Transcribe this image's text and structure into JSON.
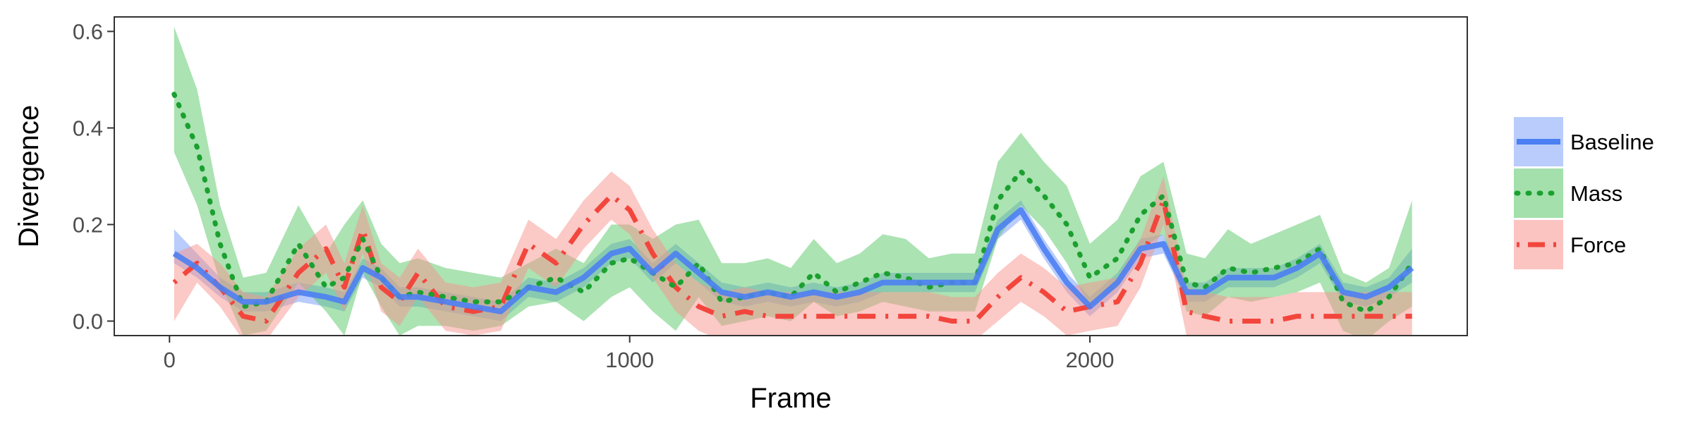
{
  "chart_data": {
    "type": "line",
    "title": "",
    "xlabel": "Frame",
    "ylabel": "Divergence",
    "xlim": [
      -120,
      2820
    ],
    "ylim": [
      -0.03,
      0.63
    ],
    "x_ticks": [
      0,
      1000,
      2000
    ],
    "x_tick_labels": [
      "0",
      "1000",
      "2000"
    ],
    "y_ticks": [
      0.0,
      0.2,
      0.4,
      0.6
    ],
    "y_tick_labels": [
      "0.0",
      "0.2",
      "0.4",
      "0.6"
    ],
    "grid": false,
    "legend_position": "right",
    "x": [
      10,
      60,
      110,
      160,
      210,
      280,
      340,
      380,
      420,
      460,
      500,
      540,
      600,
      660,
      720,
      780,
      840,
      900,
      960,
      1000,
      1050,
      1100,
      1150,
      1200,
      1250,
      1300,
      1350,
      1400,
      1450,
      1500,
      1550,
      1600,
      1650,
      1700,
      1750,
      1800,
      1850,
      1900,
      1950,
      2000,
      2060,
      2110,
      2160,
      2210,
      2250,
      2300,
      2350,
      2400,
      2450,
      2500,
      2550,
      2600,
      2650,
      2700
    ],
    "series": [
      {
        "name": "Baseline",
        "color": "#4C7FF3",
        "band_color": "#7FA3F7",
        "style": "solid",
        "values": [
          0.14,
          0.11,
          0.07,
          0.04,
          0.04,
          0.06,
          0.05,
          0.04,
          0.11,
          0.09,
          0.05,
          0.05,
          0.04,
          0.03,
          0.02,
          0.07,
          0.06,
          0.09,
          0.14,
          0.15,
          0.1,
          0.14,
          0.1,
          0.06,
          0.05,
          0.06,
          0.05,
          0.06,
          0.05,
          0.06,
          0.08,
          0.08,
          0.08,
          0.08,
          0.08,
          0.19,
          0.23,
          0.15,
          0.08,
          0.03,
          0.08,
          0.15,
          0.16,
          0.06,
          0.06,
          0.09,
          0.09,
          0.09,
          0.11,
          0.14,
          0.06,
          0.05,
          0.07,
          0.11
        ],
        "lower": [
          0.12,
          0.09,
          0.05,
          0.02,
          0.02,
          0.04,
          0.03,
          0.02,
          0.09,
          0.07,
          0.03,
          0.03,
          0.02,
          0.01,
          0.0,
          0.05,
          0.04,
          0.07,
          0.12,
          0.13,
          0.08,
          0.12,
          0.08,
          0.04,
          0.03,
          0.04,
          0.03,
          0.04,
          0.03,
          0.04,
          0.06,
          0.06,
          0.06,
          0.06,
          0.06,
          0.17,
          0.21,
          0.13,
          0.06,
          0.01,
          0.06,
          0.13,
          0.14,
          0.04,
          0.04,
          0.07,
          0.07,
          0.07,
          0.09,
          0.12,
          0.04,
          0.03,
          0.05,
          0.08
        ],
        "upper": [
          0.19,
          0.14,
          0.09,
          0.06,
          0.06,
          0.08,
          0.07,
          0.06,
          0.13,
          0.11,
          0.07,
          0.07,
          0.06,
          0.05,
          0.04,
          0.09,
          0.08,
          0.11,
          0.16,
          0.17,
          0.12,
          0.16,
          0.12,
          0.08,
          0.07,
          0.08,
          0.07,
          0.08,
          0.07,
          0.08,
          0.1,
          0.1,
          0.1,
          0.1,
          0.1,
          0.21,
          0.25,
          0.17,
          0.1,
          0.05,
          0.1,
          0.17,
          0.18,
          0.08,
          0.08,
          0.11,
          0.11,
          0.11,
          0.13,
          0.16,
          0.08,
          0.07,
          0.09,
          0.15
        ]
      },
      {
        "name": "Mass",
        "color": "#1BA02F",
        "band_color": "#57C766",
        "style": "dotted",
        "values": [
          0.47,
          0.36,
          0.16,
          0.03,
          0.04,
          0.16,
          0.07,
          0.09,
          0.17,
          0.09,
          0.05,
          0.06,
          0.05,
          0.04,
          0.04,
          0.07,
          0.09,
          0.06,
          0.12,
          0.13,
          0.1,
          0.07,
          0.12,
          0.04,
          0.05,
          0.06,
          0.05,
          0.1,
          0.06,
          0.08,
          0.1,
          0.09,
          0.07,
          0.08,
          0.08,
          0.25,
          0.31,
          0.26,
          0.2,
          0.09,
          0.13,
          0.22,
          0.26,
          0.08,
          0.07,
          0.11,
          0.1,
          0.11,
          0.12,
          0.15,
          0.04,
          0.02,
          0.05,
          0.12
        ],
        "lower": [
          0.35,
          0.24,
          0.08,
          -0.03,
          -0.02,
          0.08,
          0.02,
          -0.03,
          0.1,
          0.03,
          -0.03,
          -0.01,
          -0.01,
          -0.02,
          -0.01,
          0.03,
          0.04,
          0.0,
          0.05,
          0.07,
          0.02,
          -0.02,
          0.05,
          -0.01,
          0.0,
          0.01,
          0.0,
          0.04,
          0.01,
          0.02,
          0.04,
          0.03,
          0.02,
          0.02,
          0.02,
          0.17,
          0.24,
          0.19,
          0.12,
          0.03,
          0.07,
          0.15,
          0.18,
          0.02,
          0.01,
          0.05,
          0.04,
          0.05,
          0.06,
          0.08,
          -0.02,
          -0.04,
          0.0,
          0.03
        ],
        "upper": [
          0.61,
          0.48,
          0.24,
          0.09,
          0.1,
          0.24,
          0.14,
          0.2,
          0.25,
          0.16,
          0.12,
          0.13,
          0.11,
          0.1,
          0.09,
          0.12,
          0.15,
          0.12,
          0.2,
          0.2,
          0.17,
          0.2,
          0.21,
          0.12,
          0.12,
          0.13,
          0.11,
          0.17,
          0.12,
          0.14,
          0.18,
          0.17,
          0.13,
          0.14,
          0.14,
          0.33,
          0.39,
          0.33,
          0.28,
          0.16,
          0.21,
          0.3,
          0.33,
          0.14,
          0.13,
          0.19,
          0.16,
          0.18,
          0.2,
          0.22,
          0.1,
          0.08,
          0.11,
          0.25
        ]
      },
      {
        "name": "Force",
        "color": "#F2463D",
        "band_color": "#F7938E",
        "style": "dashdot",
        "values": [
          0.08,
          0.12,
          0.07,
          0.01,
          0.0,
          0.1,
          0.15,
          0.07,
          0.19,
          0.07,
          0.04,
          0.1,
          0.03,
          0.02,
          0.03,
          0.16,
          0.12,
          0.2,
          0.26,
          0.23,
          0.14,
          0.07,
          0.03,
          0.01,
          0.02,
          0.01,
          0.01,
          0.01,
          0.01,
          0.01,
          0.01,
          0.01,
          0.01,
          0.0,
          0.0,
          0.05,
          0.09,
          0.06,
          0.02,
          0.03,
          0.04,
          0.12,
          0.25,
          0.02,
          0.01,
          0.0,
          0.0,
          0.0,
          0.01,
          0.01,
          0.01,
          0.01,
          0.01,
          0.01
        ],
        "lower": [
          0.0,
          0.08,
          0.03,
          -0.04,
          -0.04,
          0.05,
          0.1,
          0.02,
          0.14,
          0.02,
          -0.01,
          0.05,
          -0.02,
          -0.03,
          -0.02,
          0.11,
          0.07,
          0.15,
          0.21,
          0.18,
          0.09,
          0.02,
          -0.02,
          -0.04,
          -0.03,
          -0.04,
          -0.04,
          -0.04,
          -0.04,
          -0.04,
          -0.04,
          -0.04,
          -0.04,
          -0.04,
          -0.04,
          0.0,
          0.04,
          0.01,
          -0.03,
          -0.02,
          -0.01,
          0.07,
          0.2,
          -0.03,
          -0.04,
          -0.04,
          -0.04,
          -0.04,
          -0.04,
          -0.04,
          -0.04,
          -0.04,
          -0.04,
          -0.04
        ],
        "upper": [
          0.14,
          0.16,
          0.12,
          0.06,
          0.05,
          0.15,
          0.2,
          0.12,
          0.24,
          0.12,
          0.09,
          0.15,
          0.08,
          0.07,
          0.08,
          0.21,
          0.17,
          0.25,
          0.31,
          0.28,
          0.19,
          0.12,
          0.08,
          0.06,
          0.07,
          0.06,
          0.06,
          0.06,
          0.06,
          0.06,
          0.06,
          0.06,
          0.06,
          0.05,
          0.05,
          0.1,
          0.14,
          0.11,
          0.07,
          0.08,
          0.09,
          0.17,
          0.3,
          0.07,
          0.06,
          0.05,
          0.05,
          0.05,
          0.06,
          0.06,
          0.06,
          0.06,
          0.06,
          0.06
        ]
      }
    ]
  }
}
